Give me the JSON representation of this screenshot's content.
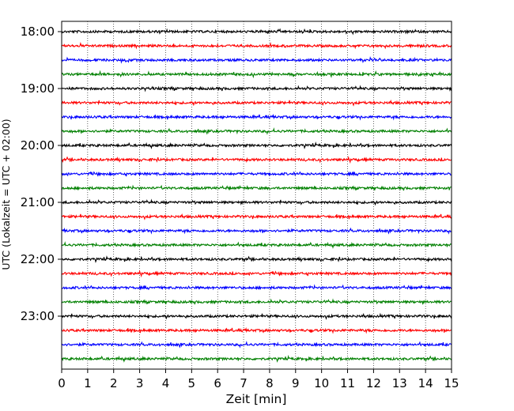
{
  "chart_data": {
    "type": "line",
    "xlabel": "Zeit  [min]",
    "ylabel": "UTC (Lokalzeit = UTC + 02:00)",
    "xlim": [
      0,
      15
    ],
    "x_ticks": [
      "0",
      "1",
      "2",
      "3",
      "4",
      "5",
      "6",
      "7",
      "8",
      "9",
      "10",
      "11",
      "12",
      "13",
      "14",
      "15"
    ],
    "y_tick_labels": [
      "18:00",
      "19:00",
      "20:00",
      "21:00",
      "22:00",
      "23:00"
    ],
    "grid": "vertical dotted lines at each minute",
    "trace_colors": [
      "#000000",
      "#ff0000",
      "#0000ff",
      "#008000"
    ],
    "series": [
      {
        "start": "18:00",
        "color": "#000000"
      },
      {
        "start": "18:15",
        "color": "#ff0000"
      },
      {
        "start": "18:30",
        "color": "#0000ff"
      },
      {
        "start": "18:45",
        "color": "#008000"
      },
      {
        "start": "19:00",
        "color": "#000000"
      },
      {
        "start": "19:15",
        "color": "#ff0000"
      },
      {
        "start": "19:30",
        "color": "#0000ff"
      },
      {
        "start": "19:45",
        "color": "#008000"
      },
      {
        "start": "20:00",
        "color": "#000000"
      },
      {
        "start": "20:15",
        "color": "#ff0000"
      },
      {
        "start": "20:30",
        "color": "#0000ff"
      },
      {
        "start": "20:45",
        "color": "#008000"
      },
      {
        "start": "21:00",
        "color": "#000000"
      },
      {
        "start": "21:15",
        "color": "#ff0000"
      },
      {
        "start": "21:30",
        "color": "#0000ff"
      },
      {
        "start": "21:45",
        "color": "#008000"
      },
      {
        "start": "22:00",
        "color": "#000000"
      },
      {
        "start": "22:15",
        "color": "#ff0000"
      },
      {
        "start": "22:30",
        "color": "#0000ff"
      },
      {
        "start": "22:45",
        "color": "#008000"
      },
      {
        "start": "23:00",
        "color": "#000000"
      },
      {
        "start": "23:15",
        "color": "#ff0000"
      },
      {
        "start": "23:30",
        "color": "#0000ff"
      },
      {
        "start": "23:45",
        "color": "#008000"
      }
    ]
  }
}
